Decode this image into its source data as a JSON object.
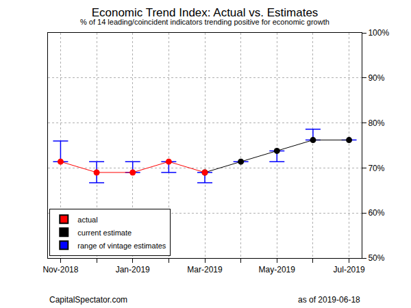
{
  "chart_data": {
    "type": "line",
    "title": "Economic Trend Index: Actual vs. Estimates",
    "subtitle": "% of 14 leading/coincident indicators trending positive for economic growth",
    "categories": [
      "Nov-2018",
      null,
      "Jan-2019",
      null,
      "Mar-2019",
      null,
      "May-2019",
      null,
      "Jul-2019"
    ],
    "series": [
      {
        "name": "actual",
        "color": "#ff0000",
        "marker": "circle",
        "values": [
          71.4,
          69.0,
          69.0,
          71.4,
          69.0,
          null,
          null,
          null,
          null
        ]
      },
      {
        "name": "current estimate",
        "color": "#000000",
        "marker": "circle",
        "values": [
          null,
          null,
          null,
          null,
          69.0,
          71.4,
          73.8,
          76.2,
          76.2
        ]
      },
      {
        "name": "range of vintage estimates",
        "color": "#0000ff",
        "type": "range",
        "low": [
          71.4,
          66.7,
          69.0,
          69.0,
          66.7,
          71.4,
          71.4,
          76.2,
          76.2
        ],
        "high": [
          76.0,
          71.4,
          71.4,
          71.4,
          69.0,
          71.4,
          73.8,
          78.6,
          76.2
        ]
      }
    ],
    "ylim": [
      50,
      100
    ],
    "yticks": [
      {
        "value": 50,
        "label": "50%"
      },
      {
        "value": 60,
        "label": "60%"
      },
      {
        "value": 70,
        "label": "70%"
      },
      {
        "value": 80,
        "label": "80%"
      },
      {
        "value": 90,
        "label": "90%"
      },
      {
        "value": 100,
        "label": "100%"
      }
    ],
    "grid": true,
    "legend": "bottom left",
    "annotations": [
      "CapitalSpectator.com",
      "as of 2019-06-18"
    ]
  }
}
